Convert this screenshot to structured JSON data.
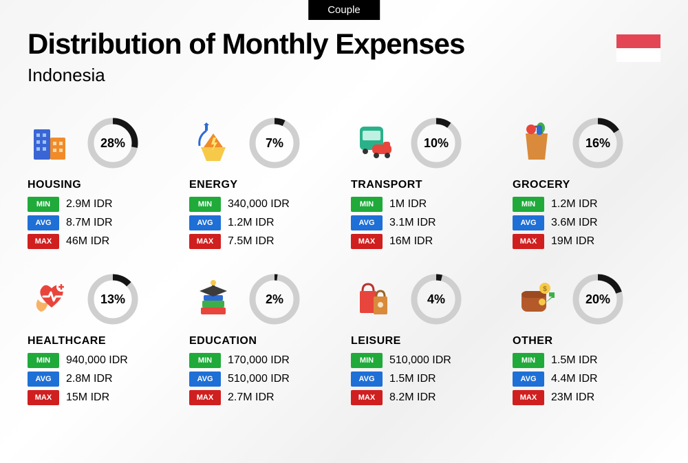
{
  "tab_label": "Couple",
  "title": "Distribution of Monthly Expenses",
  "subtitle": "Indonesia",
  "flag": {
    "top_color": "#e44554",
    "bottom_color": "#ffffff"
  },
  "donut": {
    "track_color": "#cfcfcf",
    "fill_color": "#151515",
    "stroke_width": 9,
    "radius": 32,
    "size": 76
  },
  "badges": {
    "min": {
      "label": "MIN",
      "bg": "#1faa3a"
    },
    "avg": {
      "label": "AVG",
      "bg": "#1e6fd6"
    },
    "max": {
      "label": "MAX",
      "bg": "#d01f1f"
    }
  },
  "categories": [
    {
      "name": "HOUSING",
      "icon": "housing",
      "percent": 28,
      "min": "2.9M IDR",
      "avg": "8.7M IDR",
      "max": "46M IDR"
    },
    {
      "name": "ENERGY",
      "icon": "energy",
      "percent": 7,
      "min": "340,000 IDR",
      "avg": "1.2M IDR",
      "max": "7.5M IDR"
    },
    {
      "name": "TRANSPORT",
      "icon": "transport",
      "percent": 10,
      "min": "1M IDR",
      "avg": "3.1M IDR",
      "max": "16M IDR"
    },
    {
      "name": "GROCERY",
      "icon": "grocery",
      "percent": 16,
      "min": "1.2M IDR",
      "avg": "3.6M IDR",
      "max": "19M IDR"
    },
    {
      "name": "HEALTHCARE",
      "icon": "healthcare",
      "percent": 13,
      "min": "940,000 IDR",
      "avg": "2.8M IDR",
      "max": "15M IDR"
    },
    {
      "name": "EDUCATION",
      "icon": "education",
      "percent": 2,
      "min": "170,000 IDR",
      "avg": "510,000 IDR",
      "max": "2.7M IDR"
    },
    {
      "name": "LEISURE",
      "icon": "leisure",
      "percent": 4,
      "min": "510,000 IDR",
      "avg": "1.5M IDR",
      "max": "8.2M IDR"
    },
    {
      "name": "OTHER",
      "icon": "other",
      "percent": 20,
      "min": "1.5M IDR",
      "avg": "4.4M IDR",
      "max": "23M IDR"
    }
  ]
}
